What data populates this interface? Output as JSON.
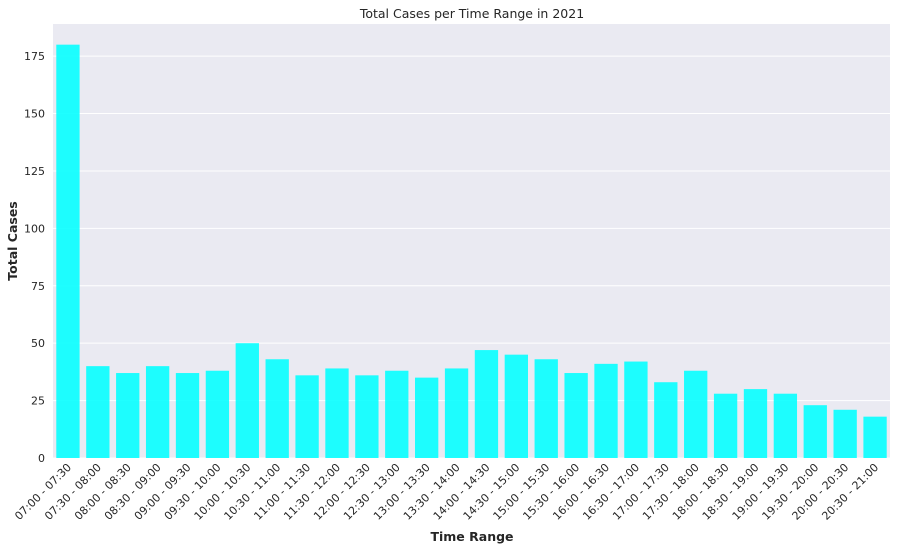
{
  "chart_data": {
    "type": "bar",
    "title": "Total Cases per Time Range in 2021",
    "xlabel": "Time Range",
    "ylabel": "Total Cases",
    "ylim": [
      0,
      189
    ],
    "yticks": [
      0,
      25,
      50,
      75,
      100,
      125,
      150,
      175
    ],
    "grid": true,
    "bar_color": "#00FFFF",
    "background_color": "#EAEAF2",
    "categories": [
      "07:00 - 07:30",
      "07:30 - 08:00",
      "08:00 - 08:30",
      "08:30 - 09:00",
      "09:00 - 09:30",
      "09:30 - 10:00",
      "10:00 - 10:30",
      "10:30 - 11:00",
      "11:00 - 11:30",
      "11:30 - 12:00",
      "12:00 - 12:30",
      "12:30 - 13:00",
      "13:00 - 13:30",
      "13:30 - 14:00",
      "14:00 - 14:30",
      "14:30 - 15:00",
      "15:00 - 15:30",
      "15:30 - 16:00",
      "16:00 - 16:30",
      "16:30 - 17:00",
      "17:00 - 17:30",
      "17:30 - 18:00",
      "18:00 - 18:30",
      "18:30 - 19:00",
      "19:00 - 19:30",
      "19:30 - 20:00",
      "20:00 - 20:30",
      "20:30 - 21:00"
    ],
    "values": [
      180,
      40,
      37,
      40,
      37,
      38,
      50,
      43,
      36,
      39,
      36,
      38,
      35,
      39,
      47,
      45,
      43,
      37,
      41,
      42,
      33,
      38,
      28,
      30,
      28,
      23,
      21,
      18
    ]
  }
}
